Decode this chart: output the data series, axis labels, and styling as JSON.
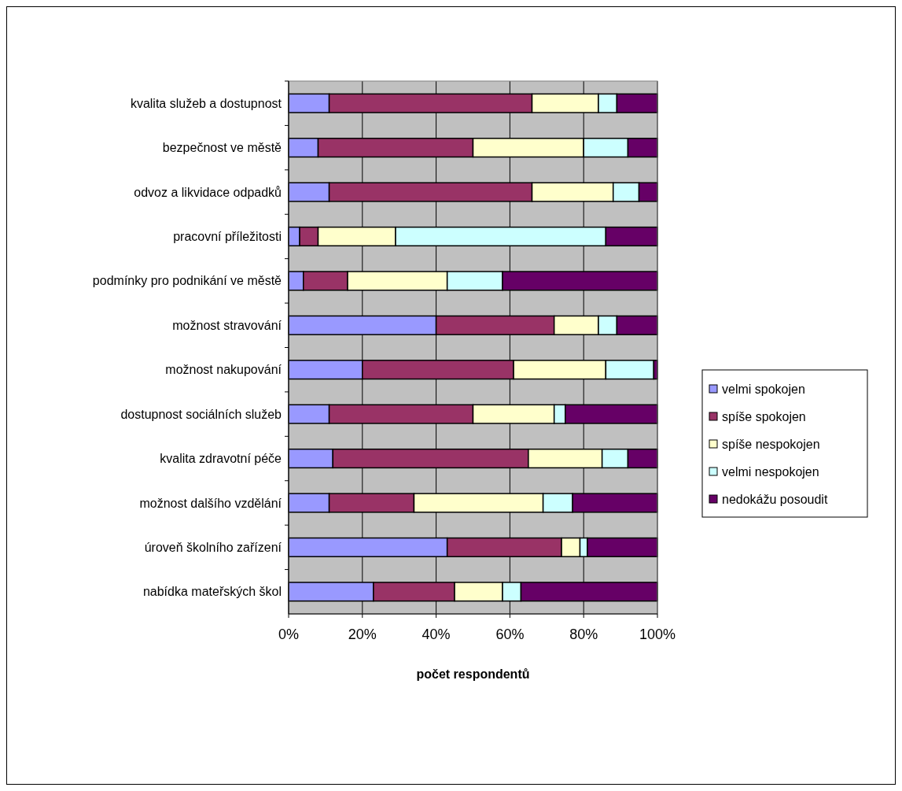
{
  "chart_data": {
    "type": "bar",
    "orientation": "horizontal",
    "stacked": true,
    "xlabel": "počet respondentů",
    "categories": [
      "kvalita služeb a dostupnost",
      "bezpečnost ve městě",
      "odvoz a likvidace odpadků",
      "pracovní příležitosti",
      "podmínky pro podnikání ve městě",
      "možnost stravování",
      "možnost nakupování",
      "dostupnost sociálních služeb",
      "kvalita zdravotní péče",
      "možnost dalšího vzdělání",
      "úroveň školního zařízení",
      "nabídka mateřských škol"
    ],
    "series": [
      {
        "name": "velmi spokojen",
        "color": "#9999ff",
        "values": [
          11,
          8,
          11,
          3,
          4,
          40,
          20,
          11,
          12,
          11,
          43,
          23
        ]
      },
      {
        "name": "spíše spokojen",
        "color": "#993366",
        "values": [
          55,
          42,
          55,
          5,
          12,
          32,
          41,
          39,
          53,
          23,
          31,
          22
        ]
      },
      {
        "name": "spíše nespokojen",
        "color": "#ffffcc",
        "values": [
          18,
          30,
          22,
          21,
          27,
          12,
          25,
          22,
          20,
          35,
          5,
          13
        ]
      },
      {
        "name": "velmi nespokojen",
        "color": "#ccffff",
        "values": [
          5,
          12,
          7,
          57,
          15,
          5,
          13,
          3,
          7,
          8,
          2,
          5
        ]
      },
      {
        "name": "nedokážu posoudit",
        "color": "#660066",
        "values": [
          11,
          8,
          5,
          14,
          42,
          11,
          1,
          25,
          8,
          23,
          19,
          37
        ]
      }
    ],
    "xlim": [
      0,
      100
    ],
    "xticks": [
      {
        "value": 0,
        "label": "0%"
      },
      {
        "value": 20,
        "label": "20%"
      },
      {
        "value": 40,
        "label": "40%"
      },
      {
        "value": 60,
        "label": "60%"
      },
      {
        "value": 80,
        "label": "80%"
      },
      {
        "value": 100,
        "label": "100%"
      }
    ],
    "grid": "x",
    "legend": "right"
  }
}
